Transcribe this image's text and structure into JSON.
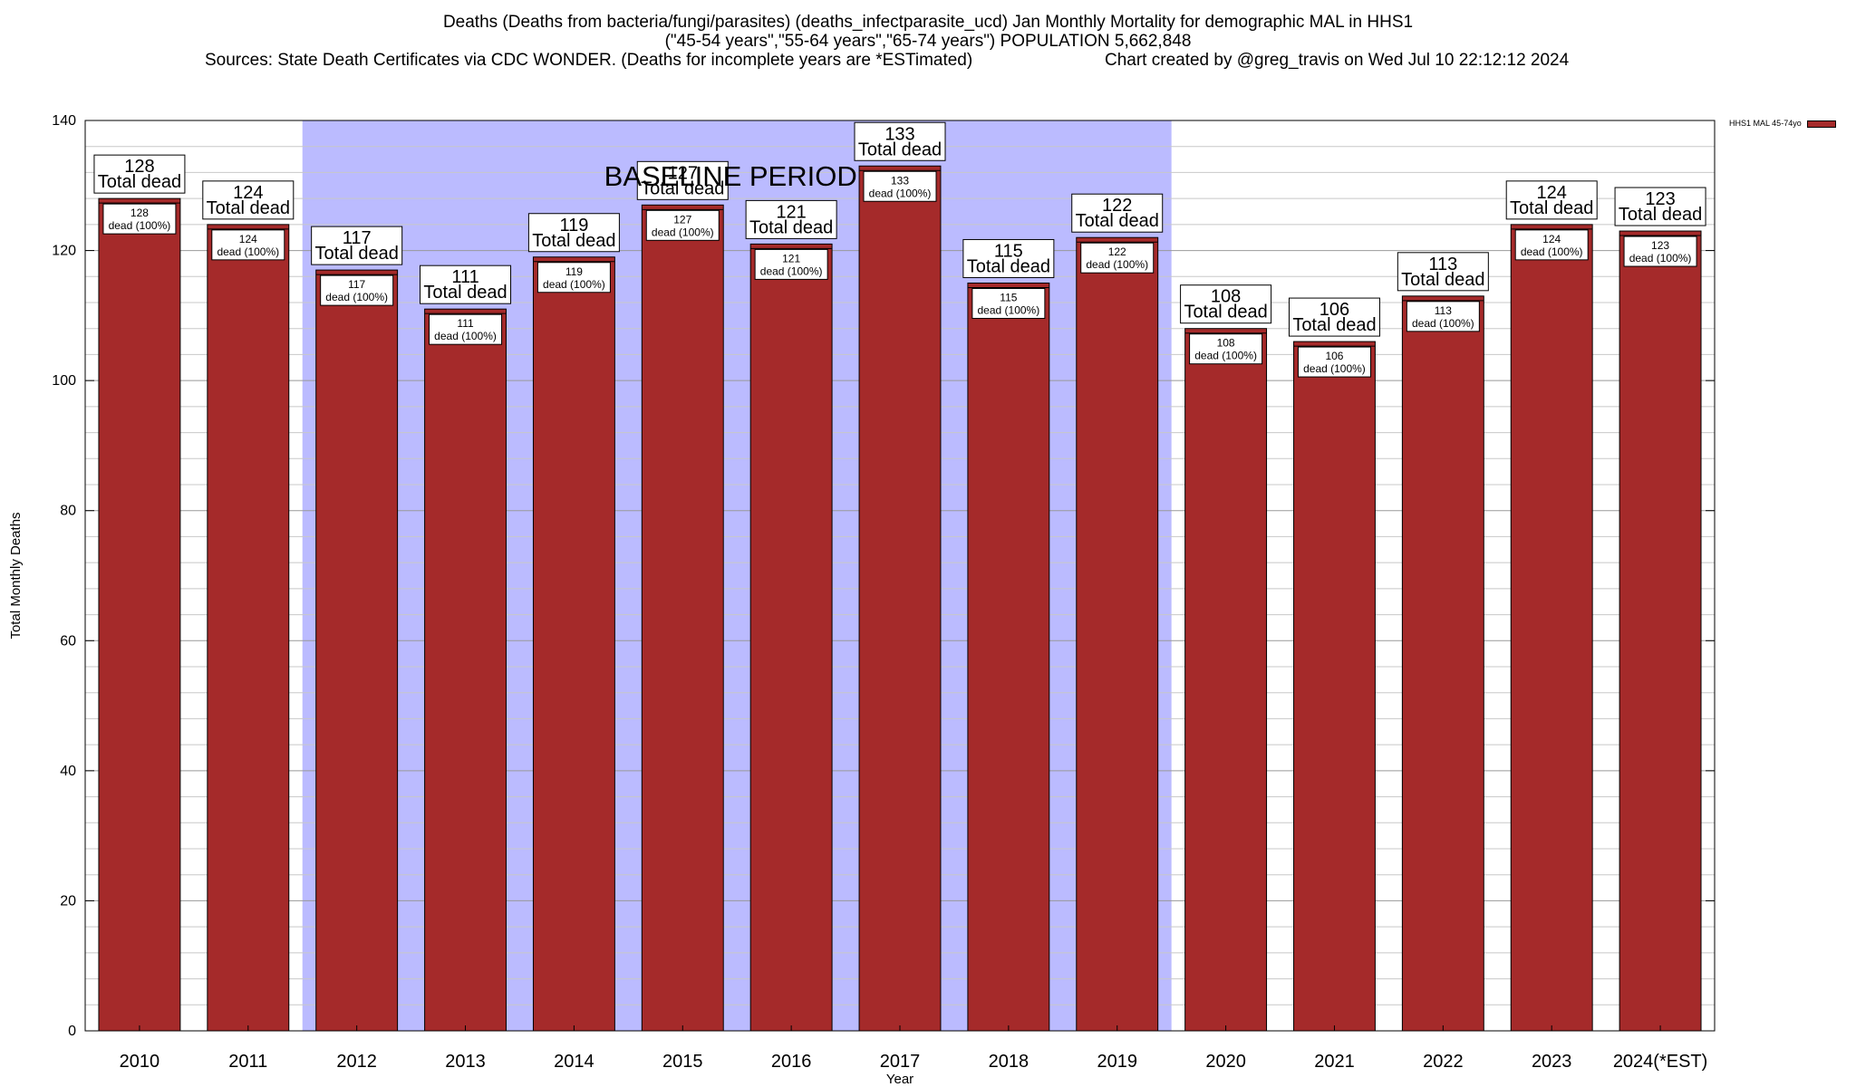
{
  "chart_data": {
    "type": "bar",
    "title": "Deaths (Deaths from bacteria/fungi/parasites) (deaths_infectparasite_ucd) Jan Monthly Mortality for demographic MAL in HHS1",
    "subtitle": "(\"45-54 years\",\"55-64 years\",\"65-74 years\") POPULATION 5,662,848",
    "source": "Sources: State Death Certificates via CDC WONDER. (Deaths for incomplete years are *ESTimated)",
    "credit": "Chart created by @greg_travis on Wed Jul 10 22:12:12 2024",
    "xlabel": "Year",
    "ylabel": "Total Monthly Deaths",
    "ylim": [
      0,
      140
    ],
    "yticks": [
      0,
      20,
      40,
      60,
      80,
      100,
      120,
      140
    ],
    "categories": [
      "2010",
      "2011",
      "2012",
      "2013",
      "2014",
      "2015",
      "2016",
      "2017",
      "2018",
      "2019",
      "2020",
      "2021",
      "2022",
      "2023",
      "2024(*EST)"
    ],
    "series": [
      {
        "name": "HHS1 MAL 45-74yo",
        "values": [
          128,
          124,
          117,
          111,
          119,
          127,
          121,
          133,
          115,
          122,
          108,
          106,
          113,
          124,
          123
        ],
        "color": "#a52a2a"
      }
    ],
    "total_label": "Total dead",
    "share_label": "dead (100%)",
    "baseline": {
      "label": "BASELINE PERIOD",
      "from": "2012",
      "to": "2019",
      "color": "#bbbbff"
    },
    "legend_position": "top-right",
    "grid": true
  }
}
